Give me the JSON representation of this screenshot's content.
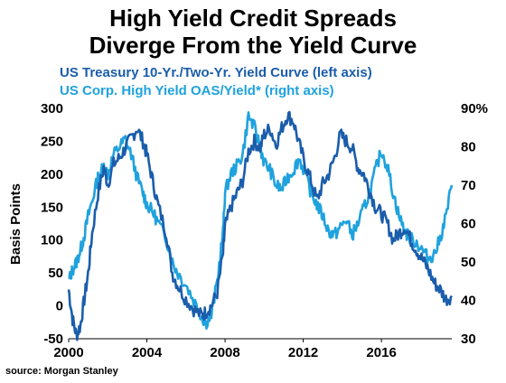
{
  "title_line1": "High Yield Credit Spreads",
  "title_line2": "Diverge From the Yield Curve",
  "subtitle1": "US Treasury 10-Yr./Two-Yr. Yield Curve (left axis)",
  "subtitle2": "US Corp. High Yield OAS/Yield* (right axis)",
  "source": "source: Morgan Stanley",
  "colors": {
    "yield_curve": "#1A5DAB",
    "hy_ratio": "#1FA2DD",
    "text": "#000000",
    "subtitle1": "#1A5DAB",
    "subtitle2": "#1FA2DD"
  },
  "chart_data": {
    "type": "line",
    "title": "High Yield Credit Spreads Diverge From the Yield Curve",
    "xlabel": "",
    "ylabel": "Basis Points",
    "y2label": "",
    "xlim": [
      2000,
      2019.6
    ],
    "ylim": [
      -50,
      300
    ],
    "y2lim": [
      30,
      90
    ],
    "x_ticks": [
      "2000",
      "2004",
      "2008",
      "2012",
      "2016"
    ],
    "y_ticks": [
      "300",
      "250",
      "200",
      "150",
      "100",
      "50",
      "0",
      "-50"
    ],
    "y2_ticks": [
      "90%",
      "80",
      "70",
      "60",
      "50",
      "40",
      "30"
    ],
    "grid": false,
    "series": [
      {
        "name": "US Treasury 10-Yr./Two-Yr. Yield Curve (left axis)",
        "axis": "left",
        "x": [
          2000.0,
          2000.2,
          2000.4,
          2000.6,
          2000.8,
          2001.0,
          2001.2,
          2001.5,
          2001.8,
          2002.0,
          2002.3,
          2002.6,
          2002.9,
          2003.2,
          2003.5,
          2003.8,
          2004.0,
          2004.3,
          2004.6,
          2005.0,
          2005.3,
          2005.6,
          2006.0,
          2006.4,
          2006.8,
          2007.0,
          2007.3,
          2007.6,
          2007.9,
          2008.0,
          2008.3,
          2008.6,
          2008.9,
          2009.2,
          2009.5,
          2009.8,
          2010.0,
          2010.3,
          2010.6,
          2010.9,
          2011.2,
          2011.5,
          2011.8,
          2012.1,
          2012.4,
          2012.7,
          2013.0,
          2013.3,
          2013.6,
          2013.9,
          2014.2,
          2014.5,
          2014.8,
          2015.1,
          2015.4,
          2015.7,
          2016.0,
          2016.3,
          2016.6,
          2016.9,
          2017.2,
          2017.5,
          2017.8,
          2018.1,
          2018.4,
          2018.7,
          2019.0,
          2019.3,
          2019.6
        ],
        "y": [
          25,
          -20,
          -45,
          -30,
          10,
          50,
          110,
          170,
          210,
          185,
          215,
          225,
          240,
          255,
          270,
          250,
          230,
          190,
          150,
          110,
          50,
          30,
          10,
          -5,
          -15,
          -10,
          0,
          20,
          80,
          120,
          150,
          170,
          190,
          235,
          250,
          240,
          260,
          270,
          245,
          270,
          290,
          280,
          245,
          215,
          190,
          160,
          185,
          200,
          225,
          260,
          250,
          240,
          210,
          200,
          175,
          150,
          140,
          125,
          100,
          110,
          120,
          100,
          85,
          70,
          55,
          35,
          25,
          10,
          15
        ]
      },
      {
        "name": "US Corp. High Yield OAS/Yield* (right axis)",
        "axis": "right",
        "x": [
          2000.0,
          2000.2,
          2000.4,
          2000.6,
          2000.8,
          2001.0,
          2001.2,
          2001.5,
          2001.8,
          2002.0,
          2002.3,
          2002.6,
          2002.9,
          2003.2,
          2003.5,
          2003.8,
          2004.0,
          2004.3,
          2004.6,
          2005.0,
          2005.3,
          2005.6,
          2006.0,
          2006.4,
          2006.8,
          2007.0,
          2007.3,
          2007.6,
          2007.9,
          2008.0,
          2008.3,
          2008.6,
          2008.9,
          2009.2,
          2009.5,
          2009.8,
          2010.0,
          2010.3,
          2010.6,
          2010.9,
          2011.2,
          2011.5,
          2011.8,
          2012.1,
          2012.4,
          2012.7,
          2013.0,
          2013.3,
          2013.6,
          2013.9,
          2014.2,
          2014.5,
          2014.8,
          2015.1,
          2015.4,
          2015.7,
          2016.0,
          2016.3,
          2016.6,
          2016.9,
          2017.2,
          2017.5,
          2017.8,
          2018.1,
          2018.4,
          2018.7,
          2019.0,
          2019.3,
          2019.6
        ],
        "y": [
          45,
          48,
          50,
          53,
          57,
          62,
          66,
          72,
          75,
          73,
          78,
          80,
          82,
          78,
          72,
          68,
          65,
          63,
          60,
          56,
          50,
          47,
          44,
          40,
          36,
          34,
          36,
          45,
          58,
          68,
          73,
          75,
          78,
          88,
          85,
          80,
          76,
          74,
          70,
          69,
          72,
          74,
          77,
          73,
          68,
          65,
          62,
          58,
          57,
          59,
          61,
          57,
          60,
          64,
          68,
          74,
          79,
          75,
          68,
          62,
          58,
          56,
          55,
          53,
          51,
          52,
          56,
          62,
          70
        ]
      }
    ]
  }
}
